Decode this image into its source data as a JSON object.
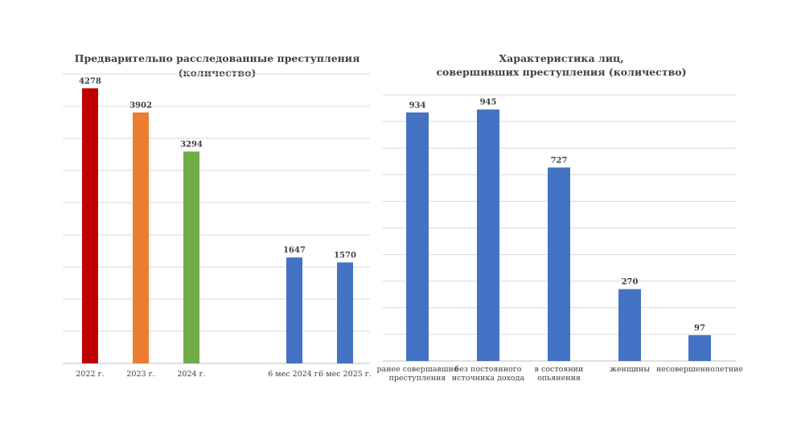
{
  "chart_data": [
    {
      "type": "bar",
      "title": [
        "Предварительно расследованные преступления",
        "(количество)"
      ],
      "categories": [
        "2022 г.",
        "2023 г.",
        "2024 г.",
        "6 мес 2024 г.",
        "6 мес 2025 г."
      ],
      "values": [
        4278,
        3902,
        3294,
        1647,
        1570
      ],
      "colors": [
        "#c00000",
        "#ed7d31",
        "#70ad47",
        "#4472c4",
        "#4472c4"
      ],
      "ylim": [
        0,
        4500
      ],
      "grid": true,
      "legend": "none"
    },
    {
      "type": "bar",
      "title": [
        "Характеристика лиц,",
        "совершивших преступления (количество)"
      ],
      "categories": [
        [
          "ранее совершавшие",
          "преступления"
        ],
        [
          "без постоянного",
          "источника дохода"
        ],
        [
          "в состоянии",
          "опьянения"
        ],
        [
          "женщины"
        ],
        [
          "несовершеннолетние"
        ]
      ],
      "values": [
        934,
        945,
        727,
        270,
        97
      ],
      "colors": [
        "#4472c4",
        "#4472c4",
        "#4472c4",
        "#4472c4",
        "#4472c4"
      ],
      "ylim": [
        0,
        1000
      ],
      "grid": true,
      "legend": "none"
    }
  ]
}
